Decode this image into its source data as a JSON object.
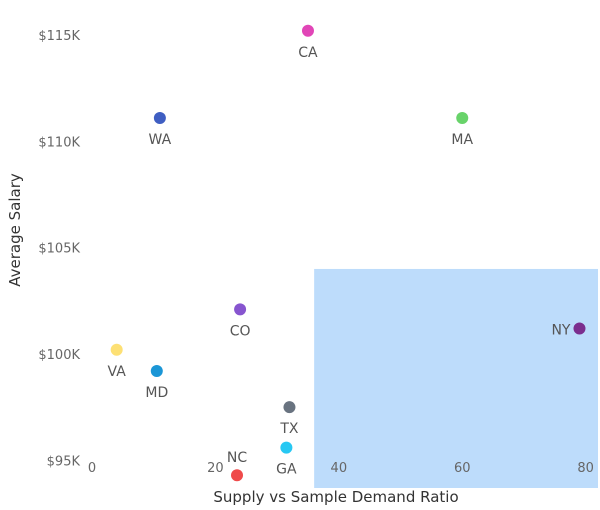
{
  "chart_data": {
    "type": "scatter",
    "xlabel": "Supply vs Sample Demand Ratio",
    "ylabel": "Average Salary",
    "xlim": [
      0,
      82
    ],
    "ylim": [
      93700,
      115800
    ],
    "x_ticks": [
      {
        "value": 0,
        "label": "0"
      },
      {
        "value": 20,
        "label": "20"
      },
      {
        "value": 40,
        "label": "40"
      },
      {
        "value": 60,
        "label": "60"
      },
      {
        "value": 80,
        "label": "80"
      }
    ],
    "y_ticks": [
      {
        "value": 95000,
        "label": "$95K"
      },
      {
        "value": 100000,
        "label": "$100K"
      },
      {
        "value": 105000,
        "label": "$105K"
      },
      {
        "value": 110000,
        "label": "$110K"
      },
      {
        "value": 115000,
        "label": "$115K"
      }
    ],
    "highlight_region": {
      "x": [
        36,
        82
      ],
      "y": [
        93700,
        104000
      ],
      "color": "#bddcfb"
    },
    "grid": false,
    "points": [
      {
        "label": "CA",
        "x": 35,
        "y": 115200,
        "color": "#e145b7",
        "label_pos": "below"
      },
      {
        "label": "WA",
        "x": 11,
        "y": 111100,
        "color": "#3f5ec2",
        "label_pos": "below"
      },
      {
        "label": "MA",
        "x": 60,
        "y": 111100,
        "color": "#68d36a",
        "label_pos": "below"
      },
      {
        "label": "CO",
        "x": 24,
        "y": 102100,
        "color": "#8755cf",
        "label_pos": "below"
      },
      {
        "label": "NY",
        "x": 79,
        "y": 101200,
        "color": "#7b2e8e",
        "label_pos": "left"
      },
      {
        "label": "VA",
        "x": 4,
        "y": 100200,
        "color": "#fde074",
        "label_pos": "below"
      },
      {
        "label": "MD",
        "x": 10.5,
        "y": 99200,
        "color": "#1b96d6",
        "label_pos": "below"
      },
      {
        "label": "TX",
        "x": 32,
        "y": 97500,
        "color": "#697380",
        "label_pos": "below"
      },
      {
        "label": "GA",
        "x": 31.5,
        "y": 95600,
        "color": "#27c8f3",
        "label_pos": "below"
      },
      {
        "label": "NC",
        "x": 23.5,
        "y": 94300,
        "color": "#ef4a4a",
        "label_pos": "above"
      }
    ]
  }
}
